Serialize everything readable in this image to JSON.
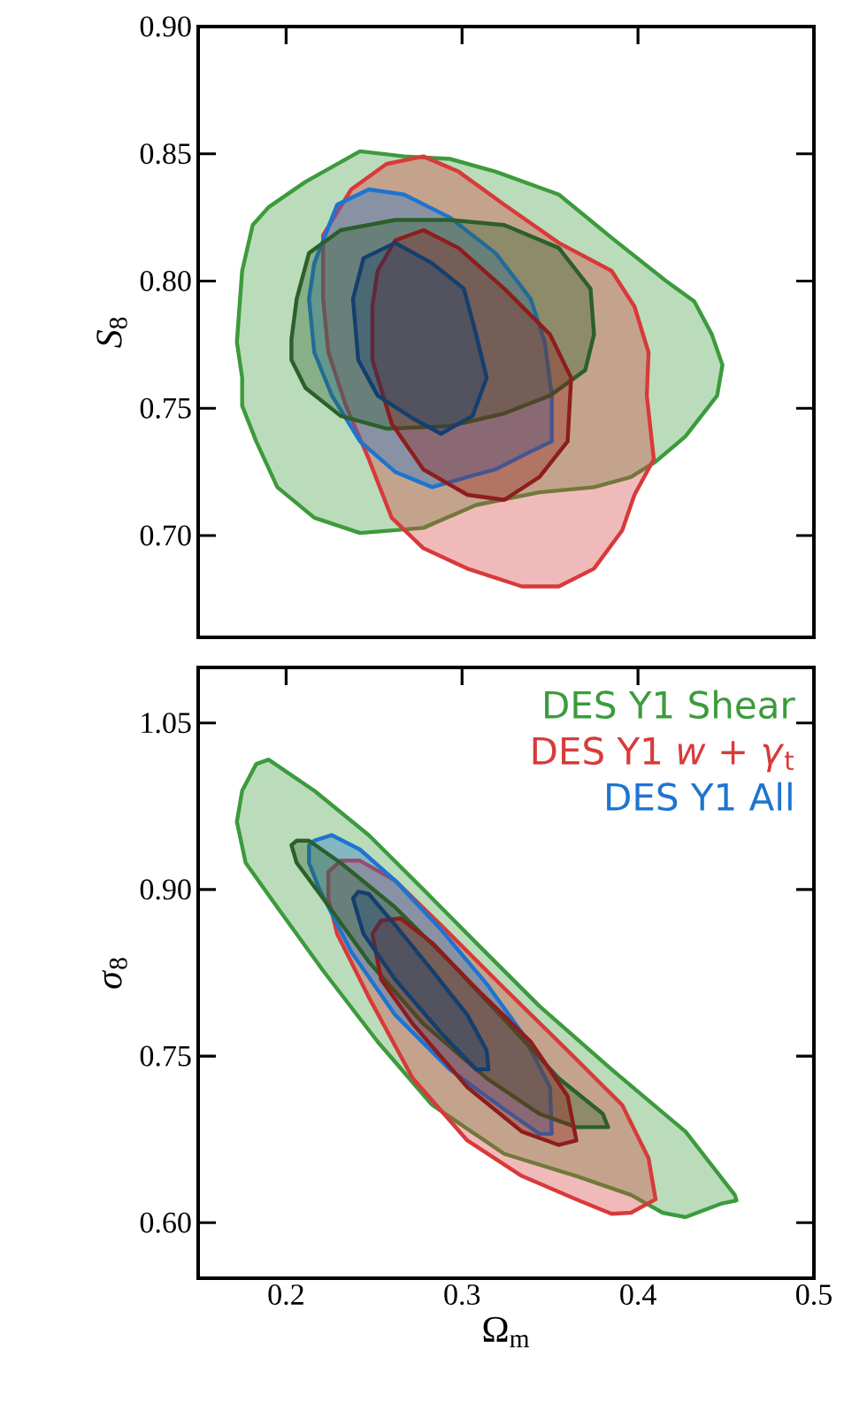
{
  "chart_data": [
    {
      "type": "area",
      "ylabel": "*S*$_{8}$",
      "xlim": [
        0.15,
        0.5
      ],
      "ylim": [
        0.66,
        0.9
      ],
      "xticks": [
        0.2,
        0.3,
        0.4,
        0.5
      ],
      "yticks": [
        {
          "value": 0.7,
          "label": "0.70"
        },
        {
          "value": 0.75,
          "label": "0.75"
        },
        {
          "value": 0.8,
          "label": "0.80"
        },
        {
          "value": 0.85,
          "label": "0.85"
        },
        {
          "value": 0.9,
          "label": "0.90"
        }
      ],
      "tick_labels": "y",
      "series": [
        {
          "color": "#3c9b3c",
          "x": [
            0.175,
            0.172,
            0.175,
            0.181,
            0.19,
            0.211,
            0.242,
            0.267,
            0.293,
            0.319,
            0.355,
            0.385,
            0.416,
            0.432,
            0.442,
            0.448,
            0.445,
            0.427,
            0.41,
            0.396,
            0.375,
            0.344,
            0.308,
            0.278,
            0.242,
            0.216,
            0.195,
            0.183,
            0.175,
            0.175
          ],
          "values": [
            0.762,
            0.776,
            0.804,
            0.822,
            0.829,
            0.839,
            0.851,
            0.849,
            0.848,
            0.843,
            0.834,
            0.817,
            0.8,
            0.792,
            0.779,
            0.767,
            0.755,
            0.739,
            0.729,
            0.723,
            0.719,
            0.717,
            0.712,
            0.703,
            0.701,
            0.707,
            0.719,
            0.737,
            0.751,
            0.762
          ]
        },
        {
          "color": "#d83a3a",
          "x": [
            0.221,
            0.237,
            0.257,
            0.278,
            0.298,
            0.324,
            0.355,
            0.385,
            0.398,
            0.406,
            0.405,
            0.409,
            0.398,
            0.391,
            0.375,
            0.355,
            0.334,
            0.303,
            0.278,
            0.26,
            0.247,
            0.234,
            0.224,
            0.221,
            0.221
          ],
          "values": [
            0.818,
            0.836,
            0.846,
            0.849,
            0.843,
            0.83,
            0.815,
            0.804,
            0.79,
            0.772,
            0.755,
            0.73,
            0.716,
            0.702,
            0.687,
            0.68,
            0.68,
            0.687,
            0.695,
            0.707,
            0.73,
            0.751,
            0.772,
            0.793,
            0.818
          ]
        },
        {
          "color": "#1e74d0",
          "x": [
            0.216,
            0.229,
            0.247,
            0.267,
            0.293,
            0.319,
            0.339,
            0.347,
            0.351,
            0.351,
            0.339,
            0.319,
            0.303,
            0.283,
            0.262,
            0.242,
            0.226,
            0.216,
            0.213,
            0.216
          ],
          "values": [
            0.807,
            0.83,
            0.836,
            0.834,
            0.825,
            0.811,
            0.793,
            0.776,
            0.755,
            0.737,
            0.733,
            0.726,
            0.723,
            0.719,
            0.725,
            0.737,
            0.755,
            0.772,
            0.793,
            0.807
          ]
        },
        {
          "color": "#2b5f2b",
          "x": [
            0.203,
            0.206,
            0.213,
            0.231,
            0.262,
            0.293,
            0.324,
            0.355,
            0.373,
            0.375,
            0.37,
            0.35,
            0.324,
            0.293,
            0.257,
            0.231,
            0.211,
            0.203,
            0.203
          ],
          "values": [
            0.777,
            0.793,
            0.811,
            0.82,
            0.824,
            0.824,
            0.822,
            0.813,
            0.797,
            0.779,
            0.765,
            0.755,
            0.748,
            0.743,
            0.742,
            0.747,
            0.758,
            0.769,
            0.777
          ]
        },
        {
          "color": "#8e1d1d",
          "x": [
            0.252,
            0.262,
            0.278,
            0.298,
            0.324,
            0.35,
            0.362,
            0.36,
            0.344,
            0.324,
            0.303,
            0.278,
            0.26,
            0.249,
            0.249,
            0.252
          ],
          "values": [
            0.804,
            0.816,
            0.82,
            0.813,
            0.797,
            0.779,
            0.762,
            0.737,
            0.723,
            0.714,
            0.716,
            0.726,
            0.744,
            0.769,
            0.79,
            0.804
          ]
        },
        {
          "color": "#143f6e",
          "x": [
            0.238,
            0.244,
            0.262,
            0.283,
            0.301,
            0.308,
            0.314,
            0.306,
            0.288,
            0.272,
            0.252,
            0.241,
            0.238
          ],
          "values": [
            0.793,
            0.809,
            0.815,
            0.807,
            0.797,
            0.779,
            0.762,
            0.747,
            0.74,
            0.746,
            0.755,
            0.769,
            0.793
          ]
        }
      ]
    },
    {
      "type": "area",
      "xlabel": "Ω$_{m}$",
      "ylabel": "*σ*$_{8}$",
      "xlim": [
        0.15,
        0.5
      ],
      "ylim": [
        0.55,
        1.1
      ],
      "xticks": [
        0.2,
        0.3,
        0.4,
        0.5
      ],
      "yticks": [
        {
          "value": 0.6,
          "label": "0.60"
        },
        {
          "value": 0.75,
          "label": "0.75"
        },
        {
          "value": 0.9,
          "label": "0.90"
        },
        {
          "value": 1.05,
          "label": "1.05"
        }
      ],
      "legend": "top right",
      "series": [
        {
          "name": "DES Y1 Shear",
          "color": "#3c9b3c",
          "x": [
            0.175,
            0.183,
            0.19,
            0.216,
            0.247,
            0.278,
            0.308,
            0.344,
            0.385,
            0.427,
            0.455,
            0.456,
            0.447,
            0.427,
            0.414,
            0.396,
            0.365,
            0.324,
            0.283,
            0.252,
            0.221,
            0.195,
            0.177,
            0.172,
            0.175
          ],
          "values": [
            0.989,
            1.013,
            1.017,
            0.989,
            0.949,
            0.9,
            0.852,
            0.795,
            0.738,
            0.682,
            0.625,
            0.62,
            0.617,
            0.605,
            0.609,
            0.625,
            0.642,
            0.662,
            0.706,
            0.763,
            0.827,
            0.884,
            0.924,
            0.961,
            0.989
          ]
        },
        {
          "name": "DES Y1 *w* + *γ*$_{t}$",
          "color": "#d83a3a",
          "x": [
            0.224,
            0.231,
            0.242,
            0.262,
            0.288,
            0.324,
            0.36,
            0.391,
            0.406,
            0.41,
            0.396,
            0.385,
            0.365,
            0.334,
            0.303,
            0.272,
            0.247,
            0.229,
            0.224,
            0.224
          ],
          "values": [
            0.916,
            0.926,
            0.926,
            0.908,
            0.868,
            0.811,
            0.755,
            0.706,
            0.658,
            0.621,
            0.609,
            0.608,
            0.621,
            0.642,
            0.674,
            0.73,
            0.803,
            0.86,
            0.892,
            0.916
          ]
        },
        {
          "name": "DES Y1 All",
          "color": "#1e74d0",
          "x": [
            0.213,
            0.216,
            0.226,
            0.242,
            0.262,
            0.288,
            0.314,
            0.334,
            0.35,
            0.351,
            0.344,
            0.324,
            0.293,
            0.262,
            0.237,
            0.219,
            0.213,
            0.213
          ],
          "values": [
            0.94,
            0.944,
            0.949,
            0.936,
            0.908,
            0.864,
            0.815,
            0.771,
            0.722,
            0.68,
            0.68,
            0.702,
            0.738,
            0.787,
            0.844,
            0.9,
            0.924,
            0.94
          ]
        },
        {
          "color": "#2b5f2b",
          "x": [
            0.203,
            0.206,
            0.213,
            0.231,
            0.262,
            0.293,
            0.324,
            0.355,
            0.38,
            0.383,
            0.365,
            0.344,
            0.314,
            0.278,
            0.247,
            0.221,
            0.206,
            0.203
          ],
          "values": [
            0.94,
            0.944,
            0.944,
            0.924,
            0.884,
            0.835,
            0.783,
            0.73,
            0.698,
            0.686,
            0.686,
            0.698,
            0.73,
            0.779,
            0.835,
            0.892,
            0.924,
            0.94
          ]
        },
        {
          "color": "#8e1d1d",
          "x": [
            0.249,
            0.254,
            0.265,
            0.283,
            0.308,
            0.339,
            0.36,
            0.365,
            0.355,
            0.334,
            0.303,
            0.272,
            0.254,
            0.249
          ],
          "values": [
            0.86,
            0.872,
            0.874,
            0.852,
            0.811,
            0.763,
            0.714,
            0.674,
            0.67,
            0.682,
            0.722,
            0.779,
            0.819,
            0.86
          ]
        },
        {
          "color": "#143f6e",
          "x": [
            0.238,
            0.241,
            0.247,
            0.262,
            0.283,
            0.303,
            0.314,
            0.315,
            0.308,
            0.288,
            0.262,
            0.244,
            0.238
          ],
          "values": [
            0.892,
            0.898,
            0.896,
            0.868,
            0.827,
            0.787,
            0.755,
            0.738,
            0.738,
            0.771,
            0.819,
            0.86,
            0.892
          ]
        }
      ]
    }
  ]
}
